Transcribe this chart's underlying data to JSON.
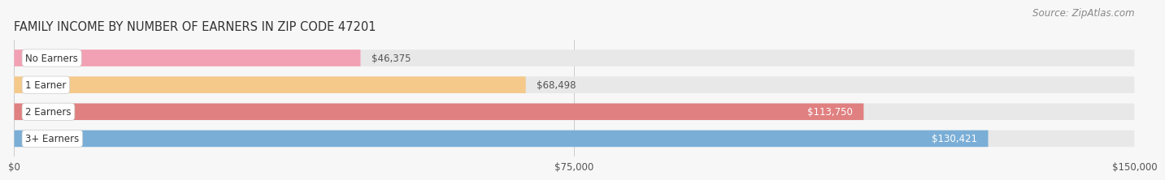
{
  "title": "FAMILY INCOME BY NUMBER OF EARNERS IN ZIP CODE 47201",
  "source": "Source: ZipAtlas.com",
  "categories": [
    "No Earners",
    "1 Earner",
    "2 Earners",
    "3+ Earners"
  ],
  "values": [
    46375,
    68498,
    113750,
    130421
  ],
  "bar_colors": [
    "#f2a0b4",
    "#f5c98a",
    "#e08080",
    "#7aaed6"
  ],
  "bar_bg_color": "#e8e8e8",
  "value_label_colors": [
    "#555555",
    "#555555",
    "#ffffff",
    "#ffffff"
  ],
  "xlim": [
    0,
    150000
  ],
  "xticks": [
    0,
    75000,
    150000
  ],
  "xticklabels": [
    "$0",
    "$75,000",
    "$150,000"
  ],
  "background_color": "#f7f7f7",
  "title_fontsize": 10.5,
  "source_fontsize": 8.5,
  "label_fontsize": 8.5,
  "tick_fontsize": 8.5,
  "category_fontsize": 8.5
}
